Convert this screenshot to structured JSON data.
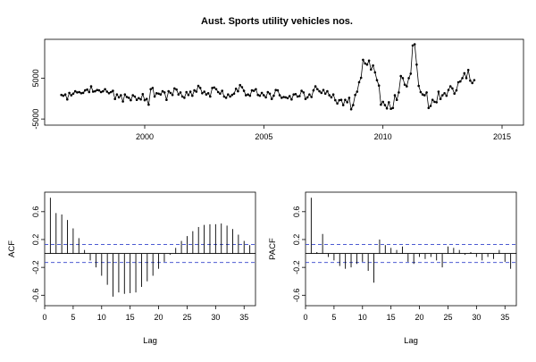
{
  "title": "Aust. Sports utility vehicles nos.",
  "chart_data": [
    {
      "type": "line",
      "title": "Aust. Sports utility vehicles nos.",
      "xlabel": "",
      "ylabel": "",
      "xlim": [
        1995.8,
        2015.9
      ],
      "ylim": [
        -6500,
        14500
      ],
      "x_ticks": [
        2000,
        2005,
        2010,
        2015
      ],
      "y_ticks": [
        -5000,
        5000
      ],
      "x_start": 1996.5,
      "x_step": 0.0833333,
      "markers": true,
      "values": [
        900,
        700,
        1000,
        -200,
        1400,
        800,
        1200,
        1800,
        1500,
        1600,
        1300,
        1400,
        2000,
        2200,
        1600,
        3000,
        1700,
        1800,
        2100,
        2000,
        1600,
        1800,
        2300,
        1700,
        1300,
        1600,
        1900,
        -100,
        1000,
        300,
        800,
        -700,
        1000,
        400,
        200,
        -400,
        800,
        500,
        -300,
        100,
        -200,
        1100,
        -400,
        -100,
        -1500,
        2300,
        2600,
        500,
        1300,
        1200,
        1000,
        1800,
        1500,
        -300,
        1800,
        1400,
        900,
        2500,
        2200,
        1000,
        1500,
        500,
        200,
        1600,
        900,
        1700,
        700,
        2000,
        1700,
        3100,
        2600,
        1300,
        1700,
        1000,
        1300,
        500,
        2600,
        2700,
        2300,
        1600,
        1200,
        1900,
        500,
        200,
        1000,
        500,
        900,
        1200,
        2400,
        1800,
        3300,
        2800,
        1900,
        800,
        1000,
        700,
        2000,
        1900,
        2300,
        900,
        700,
        1400,
        800,
        300,
        1600,
        1200,
        -100,
        700,
        2100,
        2000,
        800,
        200,
        400,
        300,
        100,
        600,
        -200,
        1000,
        1100,
        500,
        600,
        1900,
        1500,
        -100,
        300,
        1000,
        400,
        2000,
        3000,
        2300,
        1800,
        1400,
        2100,
        1200,
        1800,
        800,
        300,
        1000,
        -400,
        -1200,
        -400,
        -300,
        -1600,
        -300,
        -900,
        200,
        -2600,
        -1600,
        900,
        1700,
        4000,
        5100,
        9500,
        8600,
        8300,
        9300,
        7100,
        8100,
        6400,
        4500,
        3200,
        -1500,
        -800,
        -1600,
        -2400,
        -900,
        -2500,
        -2300,
        800,
        -300,
        1500,
        5500,
        5000,
        3400,
        3000,
        5000,
        6100,
        13000,
        13300,
        8300,
        3100,
        1600,
        1000,
        800,
        1500,
        -2300,
        -1800,
        -300,
        -800,
        -900,
        1700,
        -100,
        800,
        1300,
        700,
        2100,
        3000,
        2500,
        1200,
        2000,
        4000,
        4200,
        5000,
        6200,
        5000,
        7000,
        4400,
        3800,
        4500
      ]
    },
    {
      "type": "bar",
      "subtype": "acf",
      "xlabel": "Lag",
      "ylabel": "ACF",
      "xlim": [
        0,
        37
      ],
      "ylim": [
        -0.75,
        0.88
      ],
      "x_ticks": [
        0,
        5,
        10,
        15,
        20,
        25,
        30,
        35
      ],
      "y_ticks": [
        -0.6,
        -0.2,
        0.2,
        0.6
      ],
      "conf_bound": 0.13,
      "lags": [
        1,
        2,
        3,
        4,
        5,
        6,
        7,
        8,
        9,
        10,
        11,
        12,
        13,
        14,
        15,
        16,
        17,
        18,
        19,
        20,
        21,
        22,
        23,
        24,
        25,
        26,
        27,
        28,
        29,
        30,
        31,
        32,
        33,
        34,
        35,
        36
      ],
      "values": [
        0.8,
        0.58,
        0.56,
        0.48,
        0.36,
        0.22,
        0.05,
        -0.1,
        -0.2,
        -0.32,
        -0.45,
        -0.62,
        -0.56,
        -0.58,
        -0.57,
        -0.56,
        -0.48,
        -0.4,
        -0.32,
        -0.22,
        -0.12,
        -0.02,
        0.08,
        0.18,
        0.25,
        0.32,
        0.38,
        0.41,
        0.42,
        0.42,
        0.43,
        0.4,
        0.35,
        0.27,
        0.18,
        0.12
      ]
    },
    {
      "type": "bar",
      "subtype": "pacf",
      "xlabel": "Lag",
      "ylabel": "PACF",
      "xlim": [
        0,
        37
      ],
      "ylim": [
        -0.75,
        0.88
      ],
      "x_ticks": [
        0,
        5,
        10,
        15,
        20,
        25,
        30,
        35
      ],
      "y_ticks": [
        -0.6,
        -0.2,
        0.2,
        0.6
      ],
      "conf_bound": 0.13,
      "lags": [
        1,
        2,
        3,
        4,
        5,
        6,
        7,
        8,
        9,
        10,
        11,
        12,
        13,
        14,
        15,
        16,
        17,
        18,
        19,
        20,
        21,
        22,
        23,
        24,
        25,
        26,
        27,
        28,
        29,
        30,
        31,
        32,
        33,
        34,
        35,
        36
      ],
      "values": [
        0.8,
        0.02,
        0.28,
        -0.05,
        -0.1,
        -0.18,
        -0.22,
        -0.2,
        -0.15,
        -0.12,
        -0.25,
        -0.42,
        0.2,
        0.12,
        0.08,
        0.05,
        0.1,
        -0.12,
        -0.15,
        -0.05,
        -0.08,
        -0.05,
        -0.1,
        -0.2,
        0.1,
        0.08,
        0.05,
        -0.02,
        0.02,
        -0.05,
        -0.1,
        -0.05,
        -0.08,
        0.05,
        -0.12,
        -0.22
      ]
    }
  ]
}
